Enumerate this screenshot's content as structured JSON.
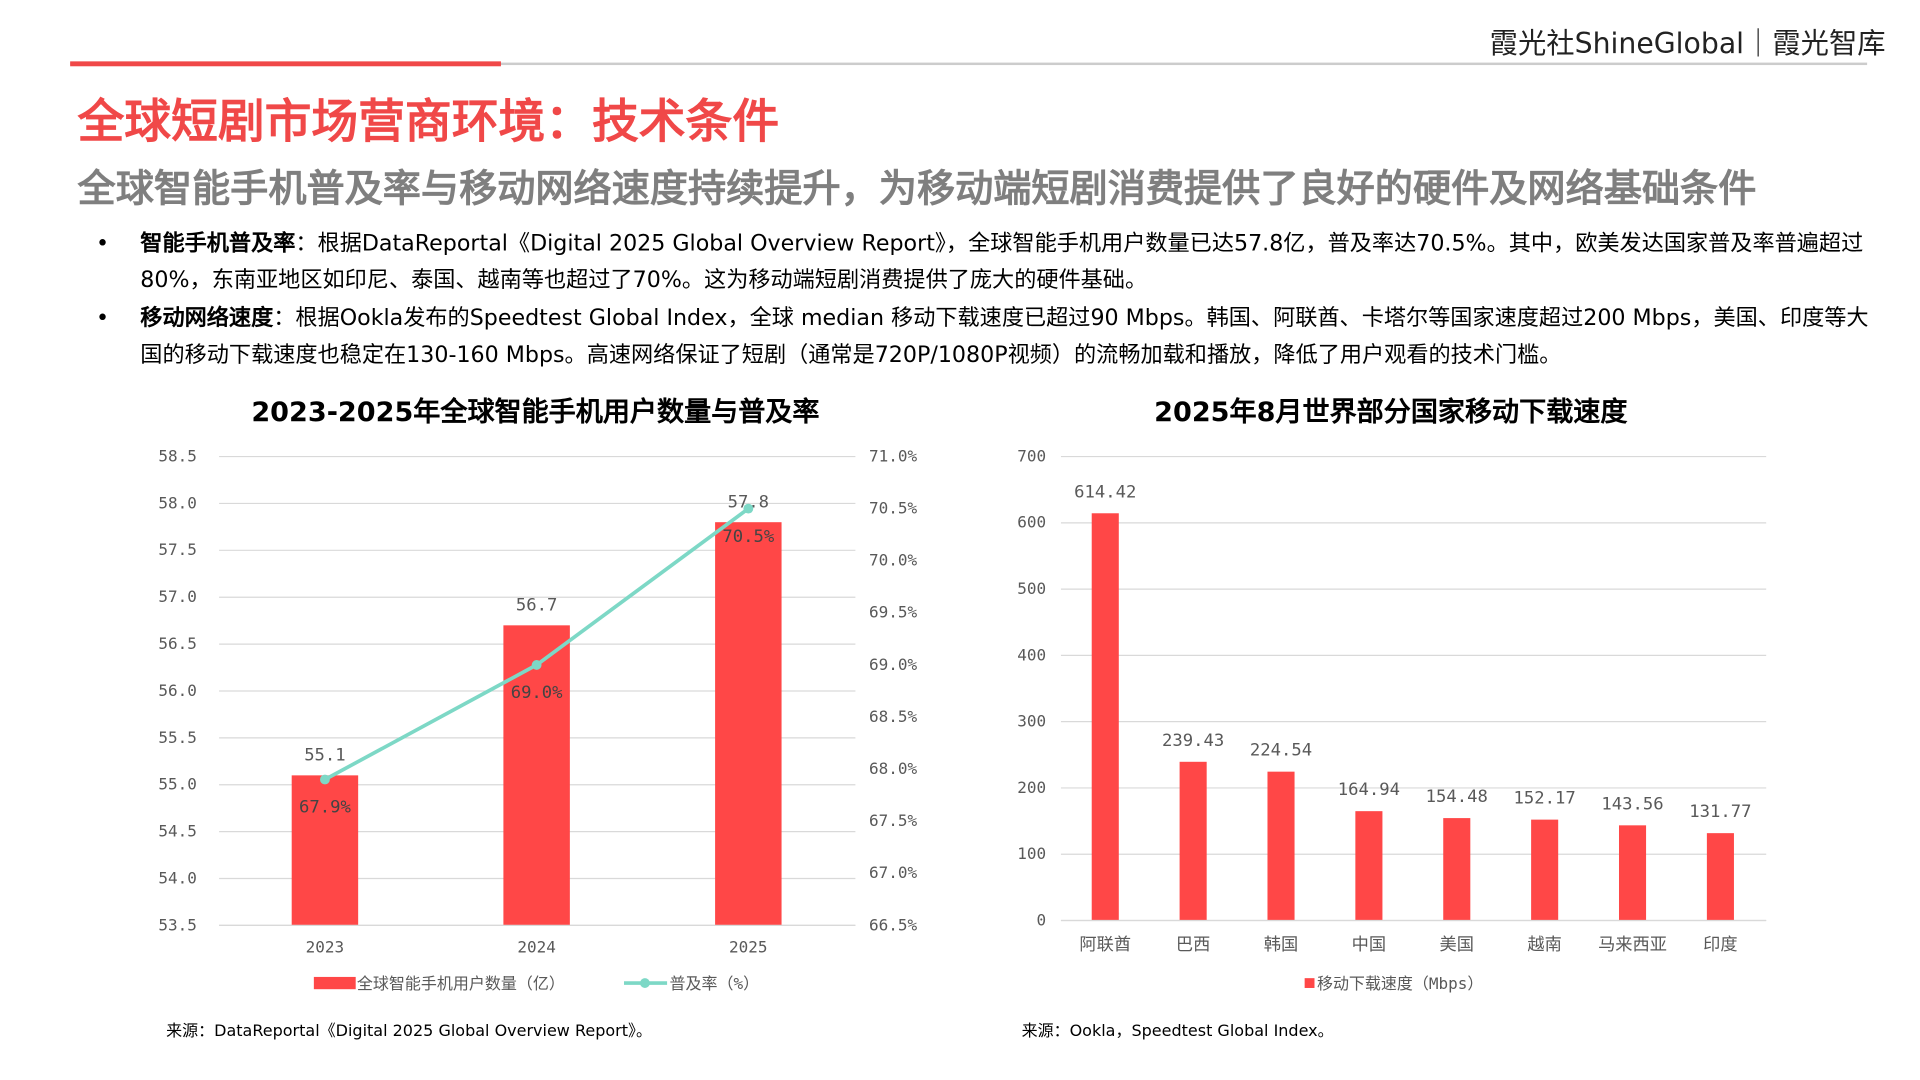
{
  "header": {
    "brand": "霞光社ShineGlobal｜霞光智库"
  },
  "title": "全球短剧市场营商环境：技术条件",
  "subtitle": "全球智能手机普及率与移动网络速度持续提升，为移动端短剧消费提供了良好的硬件及网络基础条件",
  "bullets": [
    {
      "bold": "智能手机普及率",
      "text": "：根据DataReportal《Digital 2025 Global Overview Report》，全球智能手机用户数量已达57.8亿，普及率达70.5%。其中，欧美发达国家普及率普遍超过80%，东南亚地区如印尼、泰国、越南等也超过了70%。这为移动端短剧消费提供了庞大的硬件基础。"
    },
    {
      "bold": "移动网络速度",
      "text": "：根据Ookla发布的Speedtest Global Index，全球 median 移动下载速度已超过90 Mbps。韩国、阿联酋、卡塔尔等国家速度超过200 Mbps，美国、印度等大国的移动下载速度也稳定在130-160 Mbps。高速网络保证了短剧（通常是720P/1080P视频）的流畅加载和播放，降低了用户观看的技术门槛。"
    }
  ],
  "colors": {
    "accent": "#f04848",
    "bar": "#ff4747",
    "line": "#7dd8c6"
  },
  "chart_data": [
    {
      "type": "bar+line",
      "title": "2023-2025年全球智能手机用户数量与普及率",
      "categories": [
        "2023",
        "2024",
        "2025"
      ],
      "series": [
        {
          "name": "全球智能手机用户数量（亿）",
          "type": "bar",
          "axis": "left",
          "values": [
            55.1,
            56.7,
            57.8
          ],
          "labels": [
            "55.1",
            "56.7",
            "57.8"
          ]
        },
        {
          "name": "普及率（%）",
          "type": "line",
          "axis": "right",
          "values": [
            67.9,
            69.0,
            70.5
          ],
          "labels": [
            "67.9%",
            "69.0%",
            "70.5%"
          ]
        }
      ],
      "ylim": [
        53.5,
        58.5
      ],
      "yticks": [
        "53.5",
        "54.0",
        "54.5",
        "55.0",
        "55.5",
        "56.0",
        "56.5",
        "57.0",
        "57.5",
        "58.0",
        "58.5"
      ],
      "y2lim": [
        66.5,
        71.0
      ],
      "y2ticks": [
        "66.5%",
        "67.0%",
        "67.5%",
        "68.0%",
        "68.5%",
        "69.0%",
        "69.5%",
        "70.0%",
        "70.5%",
        "71.0%"
      ],
      "grid": true,
      "legend": "bottom",
      "source": "来源：DataReportal《Digital 2025 Global Overview Report》。"
    },
    {
      "type": "bar",
      "title": "2025年8月世界部分国家移动下载速度",
      "categories": [
        "阿联酋",
        "巴西",
        "韩国",
        "中国",
        "美国",
        "越南",
        "马来西亚",
        "印度"
      ],
      "series": [
        {
          "name": "移动下载速度（Mbps）",
          "values": [
            614.42,
            239.43,
            224.54,
            164.94,
            154.48,
            152.17,
            143.56,
            131.77
          ],
          "labels": [
            "614.42",
            "239.43",
            "224.54",
            "164.94",
            "154.48",
            "152.17",
            "143.56",
            "131.77"
          ]
        }
      ],
      "ylim": [
        0,
        700
      ],
      "yticks": [
        "0",
        "100",
        "200",
        "300",
        "400",
        "500",
        "600",
        "700"
      ],
      "grid": true,
      "legend": "bottom",
      "source": "来源：Ookla，Speedtest Global Index。"
    }
  ]
}
